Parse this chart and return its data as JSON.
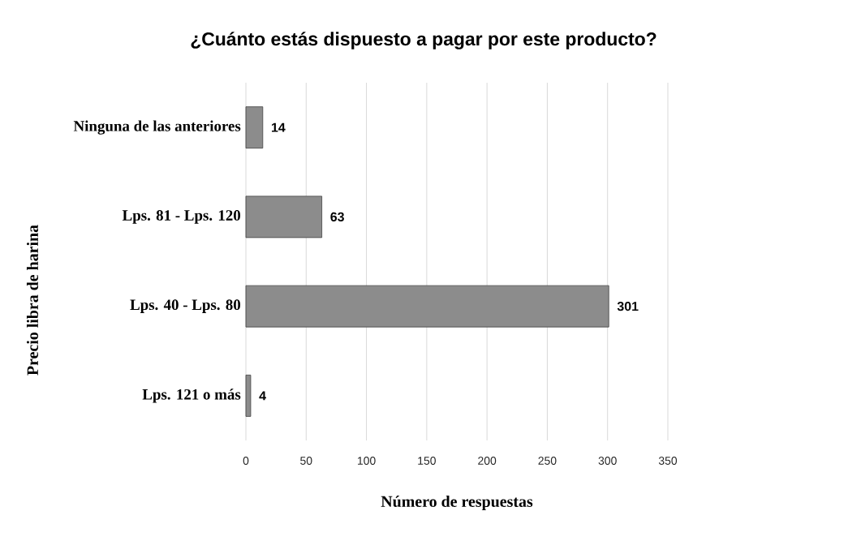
{
  "chart_data": {
    "type": "bar",
    "orientation": "horizontal",
    "title": "¿Cuánto estás dispuesto a pagar por este producto?",
    "xlabel": "Número de respuestas",
    "ylabel": "Precio libra de harina",
    "categories": [
      "Ninguna de las anteriores",
      "Lps. 81 - Lps. 120",
      "Lps. 40 - Lps. 80",
      "Lps. 121 o más"
    ],
    "values": [
      14,
      63,
      301,
      4
    ],
    "color": "#8c8c8c",
    "xlim": [
      0,
      350
    ],
    "xticks": [
      0,
      50,
      100,
      150,
      200,
      250,
      300,
      350
    ],
    "grid": "x",
    "data_labels": true
  }
}
